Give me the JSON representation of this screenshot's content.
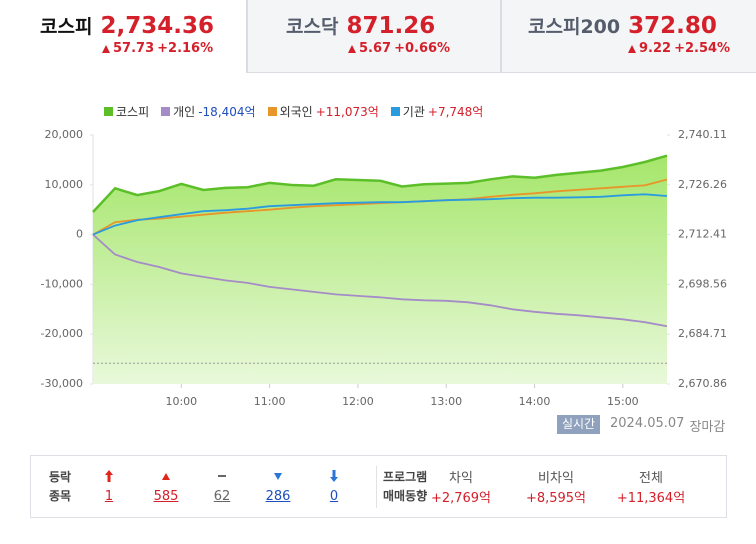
{
  "tabs": [
    {
      "name": "코스피",
      "value": "2,734.36",
      "change": "57.73",
      "rate": "+2.16%"
    },
    {
      "name": "코스닥",
      "value": "871.26",
      "change": "5.67",
      "rate": "+0.66%"
    },
    {
      "name": "코스피200",
      "value": "372.80",
      "change": "9.22",
      "rate": "+2.54%"
    }
  ],
  "chart_data": {
    "type": "line",
    "x": [
      9,
      9.25,
      9.5,
      9.75,
      10,
      10.25,
      10.5,
      10.75,
      11,
      11.25,
      11.5,
      11.75,
      12,
      12.25,
      12.5,
      12.75,
      13,
      13.25,
      13.5,
      13.75,
      14,
      14.25,
      14.5,
      14.75,
      15,
      15.25,
      15.5
    ],
    "xlim": [
      9,
      15.5
    ],
    "xticks": [
      {
        "value": 10,
        "label": "10:00"
      },
      {
        "value": 11,
        "label": "11:00"
      },
      {
        "value": 12,
        "label": "12:00"
      },
      {
        "value": 13,
        "label": "13:00"
      },
      {
        "value": 14,
        "label": "14:00"
      },
      {
        "value": 15,
        "label": "15:00"
      }
    ],
    "ylim": [
      -30000,
      20000
    ],
    "yticks": [
      {
        "value": 20000,
        "label": "20,000"
      },
      {
        "value": 10000,
        "label": "10,000"
      },
      0,
      {
        "value": -10000,
        "label": "-10,000"
      },
      {
        "value": -20000,
        "label": "-20,000"
      },
      {
        "value": -30000,
        "label": "-30,000"
      }
    ],
    "y2lim": [
      2670.86,
      2740.11
    ],
    "y2ticks": [
      {
        "value": 2740.11,
        "label": "2,740.11"
      },
      {
        "value": 2726.26,
        "label": "2,726.26"
      },
      {
        "value": 2712.41,
        "label": "2,712.41"
      },
      {
        "value": 2698.56,
        "label": "2,698.56"
      },
      {
        "value": 2684.71,
        "label": "2,684.71"
      },
      {
        "value": 2670.86,
        "label": "2,670.86"
      }
    ],
    "reference": 2676.63,
    "grid": false,
    "series": [
      {
        "name": "코스피",
        "color": "#5cbf2a",
        "axis": "y2",
        "area": true,
        "values": [
          2718.7,
          2725.3,
          2723.4,
          2724.5,
          2726.5,
          2724.8,
          2725.4,
          2725.6,
          2726.8,
          2726.2,
          2726.0,
          2727.8,
          2727.6,
          2727.4,
          2725.8,
          2726.4,
          2726.6,
          2726.8,
          2727.8,
          2728.6,
          2728.2,
          2729.0,
          2729.6,
          2730.2,
          2731.2,
          2732.6,
          2734.36
        ]
      },
      {
        "name": "개인",
        "total": "-18,404억",
        "total_color": "#1d4fbf",
        "color": "#a58bc8",
        "values": [
          0,
          -4000,
          -5500,
          -6500,
          -7800,
          -8500,
          -9200,
          -9700,
          -10500,
          -11000,
          -11500,
          -12000,
          -12300,
          -12600,
          -13000,
          -13200,
          -13300,
          -13600,
          -14200,
          -15000,
          -15500,
          -15900,
          -16200,
          -16600,
          -17000,
          -17600,
          -18404
        ]
      },
      {
        "name": "외국인",
        "total": "+11,073억",
        "total_color": "#d4202a",
        "color": "#e8952a",
        "values": [
          0,
          2500,
          3000,
          3200,
          3600,
          4000,
          4400,
          4700,
          5000,
          5400,
          5700,
          5900,
          6100,
          6300,
          6500,
          6700,
          6900,
          7100,
          7600,
          8000,
          8300,
          8700,
          9000,
          9300,
          9600,
          9900,
          11073
        ]
      },
      {
        "name": "기관",
        "total": "+7,748억",
        "total_color": "#d4202a",
        "color": "#2b9be0",
        "values": [
          0,
          1800,
          2900,
          3500,
          4100,
          4700,
          4900,
          5200,
          5700,
          5900,
          6100,
          6300,
          6400,
          6500,
          6500,
          6700,
          6900,
          7000,
          7100,
          7300,
          7400,
          7400,
          7500,
          7600,
          7900,
          8100,
          7748
        ]
      }
    ]
  },
  "status": {
    "badge": "실시간",
    "date": "2024.05.07",
    "state": "장마감"
  },
  "breadth": {
    "label": [
      "등락",
      "종목"
    ],
    "counts": [
      "1",
      "585",
      "62",
      "286",
      "0"
    ]
  },
  "program": {
    "label": [
      "프로그램",
      "매매동향"
    ],
    "columns": [
      {
        "name": "차익",
        "value": "+2,769억"
      },
      {
        "name": "비차익",
        "value": "+8,595억"
      },
      {
        "name": "전체",
        "value": "+11,364억"
      }
    ]
  }
}
